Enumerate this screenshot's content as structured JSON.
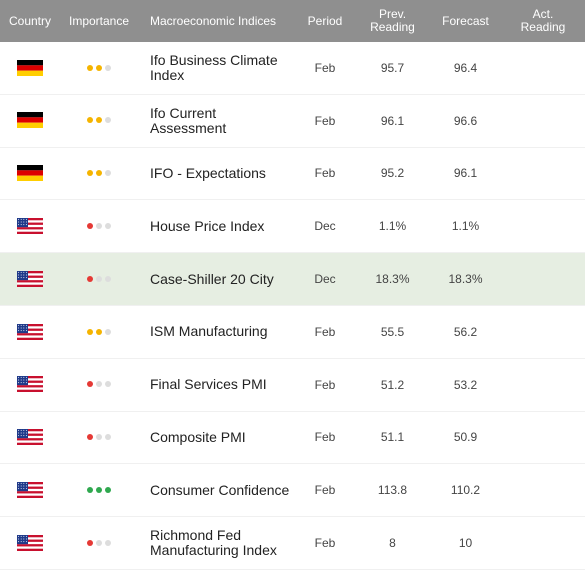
{
  "header": {
    "country": "Country",
    "importance": "Importance",
    "index": "Macroeconomic Indices",
    "period": "Period",
    "prev_line1": "Prev.",
    "prev_line2": "Reading",
    "forecast": "Forecast",
    "act_line1": "Act.",
    "act_line2": "Reading"
  },
  "colors": {
    "header_bg": "#8f8f8f",
    "highlight_bg": "#e6eee2",
    "dot_orange": "#f5b400",
    "dot_red": "#e53935",
    "dot_green": "#2fa84f",
    "dot_inactive": "#dddddd"
  },
  "rows": [
    {
      "country": "germany-flag",
      "importance": 2,
      "importance_color": "#f5b400",
      "name": "Ifo Business Climate Index",
      "period": "Feb",
      "prev": "95.7",
      "forecast": "96.4",
      "actual": "",
      "highlight": false
    },
    {
      "country": "germany-flag",
      "importance": 2,
      "importance_color": "#f5b400",
      "name": "Ifo Current Assessment",
      "period": "Feb",
      "prev": "96.1",
      "forecast": "96.6",
      "actual": "",
      "highlight": false
    },
    {
      "country": "germany-flag",
      "importance": 2,
      "importance_color": "#f5b400",
      "name": "IFO - Expectations",
      "period": "Feb",
      "prev": "95.2",
      "forecast": "96.1",
      "actual": "",
      "highlight": false
    },
    {
      "country": "usa-flag",
      "importance": 1,
      "importance_color": "#e53935",
      "name": "House Price Index",
      "period": "Dec",
      "prev": "1.1%",
      "forecast": "1.1%",
      "actual": "",
      "highlight": false
    },
    {
      "country": "usa-flag",
      "importance": 1,
      "importance_color": "#e53935",
      "name": "Case-Shiller 20 City",
      "period": "Dec",
      "prev": "18.3%",
      "forecast": "18.3%",
      "actual": "",
      "highlight": true
    },
    {
      "country": "usa-flag",
      "importance": 2,
      "importance_color": "#f5b400",
      "name": "ISM Manufacturing",
      "period": "Feb",
      "prev": "55.5",
      "forecast": "56.2",
      "actual": "",
      "highlight": false
    },
    {
      "country": "usa-flag",
      "importance": 1,
      "importance_color": "#e53935",
      "name": "Final Services PMI",
      "period": "Feb",
      "prev": "51.2",
      "forecast": "53.2",
      "actual": "",
      "highlight": false
    },
    {
      "country": "usa-flag",
      "importance": 1,
      "importance_color": "#e53935",
      "name": "Composite PMI",
      "period": "Feb",
      "prev": "51.1",
      "forecast": "50.9",
      "actual": "",
      "highlight": false
    },
    {
      "country": "usa-flag",
      "importance": 3,
      "importance_color": "#2fa84f",
      "name": "Consumer Confidence",
      "period": "Feb",
      "prev": "113.8",
      "forecast": "110.2",
      "actual": "",
      "highlight": false
    },
    {
      "country": "usa-flag",
      "importance": 1,
      "importance_color": "#e53935",
      "name": "Richmond Fed Manufacturing Index",
      "period": "Feb",
      "prev": "8",
      "forecast": "10",
      "actual": "",
      "highlight": false
    }
  ]
}
